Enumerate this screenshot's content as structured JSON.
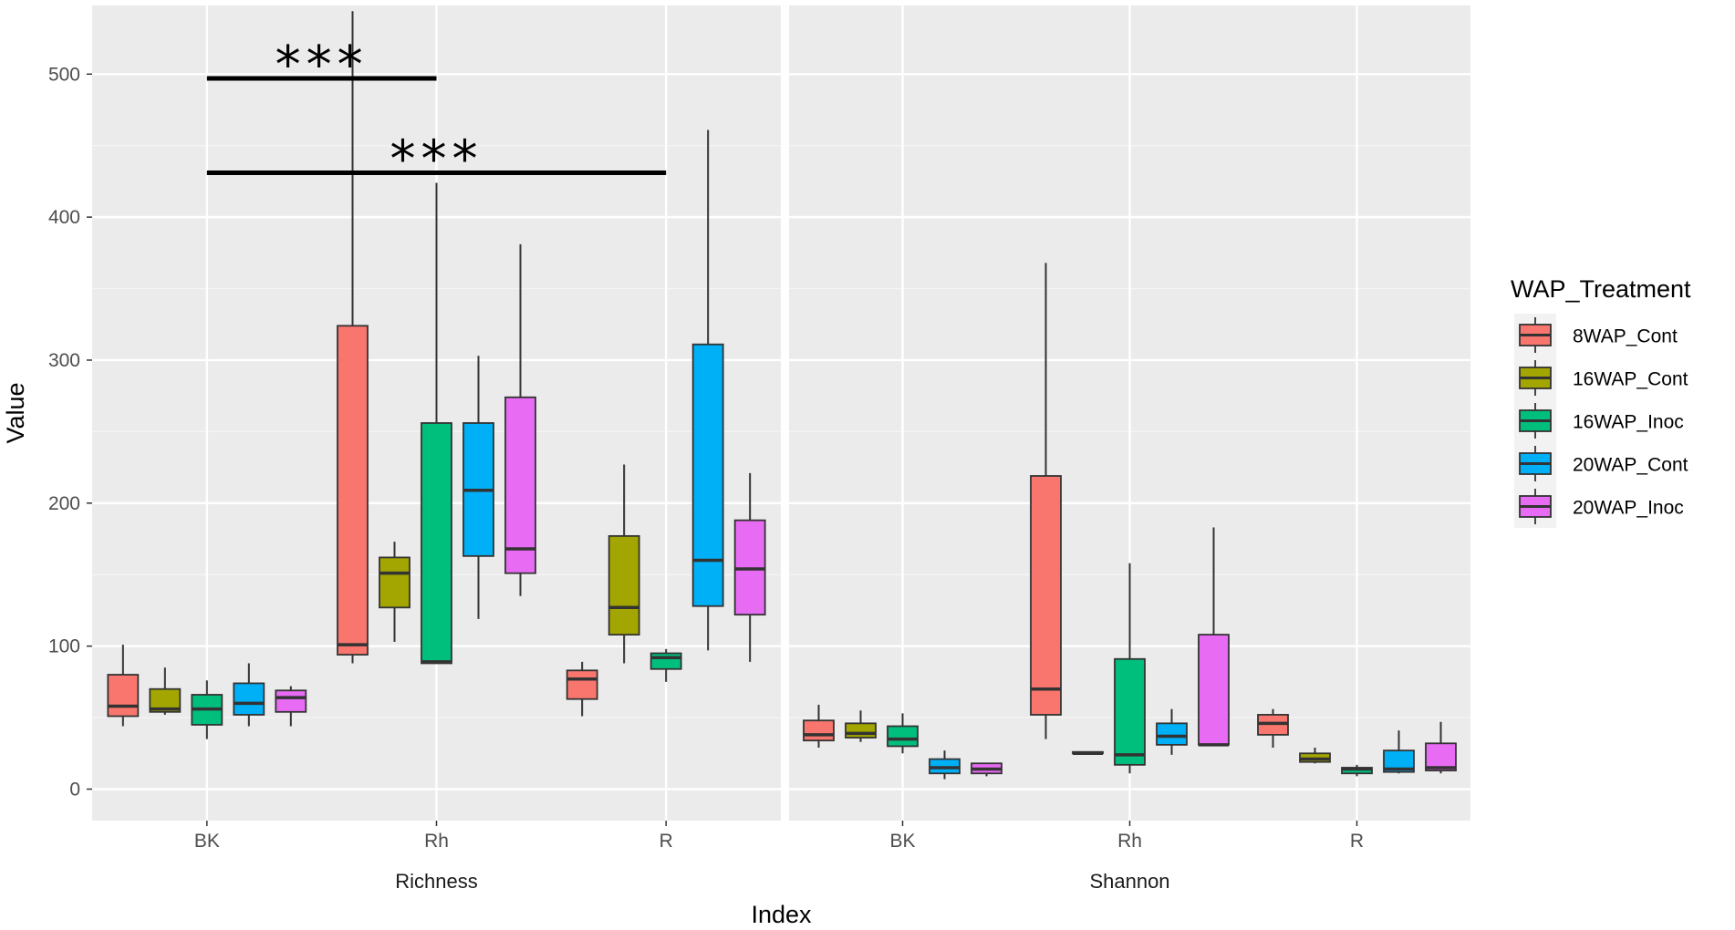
{
  "chart_data": {
    "type": "boxplot",
    "ylabel": "Value",
    "xlabel": "Index",
    "ylim": [
      -22,
      548
    ],
    "yticks": [
      0,
      100,
      200,
      300,
      400,
      500
    ],
    "categories": [
      "BK",
      "Rh",
      "R"
    ],
    "facets": [
      "Richness",
      "Shannon"
    ],
    "legend": {
      "title": "WAP_Treatment",
      "position": "right",
      "entries": [
        "8WAP_Cont",
        "16WAP_Cont",
        "16WAP_Inoc",
        "20WAP_Cont",
        "20WAP_Inoc"
      ]
    },
    "colors": [
      "#f8766d",
      "#a3a500",
      "#00bf7d",
      "#00b0f6",
      "#e76bf3"
    ],
    "series": [
      {
        "name": "8WAP_Cont",
        "Richness": {
          "BK": {
            "min": 44,
            "q1": 51,
            "median": 58,
            "q3": 80,
            "max": 101
          },
          "Rh": {
            "min": 88,
            "q1": 94,
            "median": 101,
            "q3": 324,
            "max": 544
          },
          "R": {
            "min": 51,
            "q1": 63,
            "median": 77,
            "q3": 83,
            "max": 89
          }
        },
        "Shannon": {
          "BK": {
            "min": 29,
            "q1": 34,
            "median": 38,
            "q3": 48,
            "max": 59
          },
          "Rh": {
            "min": 35,
            "q1": 52,
            "median": 70,
            "q3": 219,
            "max": 368
          },
          "R": {
            "min": 29,
            "q1": 38,
            "median": 46,
            "q3": 52,
            "max": 56
          }
        }
      },
      {
        "name": "16WAP_Cont",
        "Richness": {
          "BK": {
            "min": 52,
            "q1": 54,
            "median": 56,
            "q3": 70,
            "max": 85
          },
          "Rh": {
            "min": 103,
            "q1": 127,
            "median": 151,
            "q3": 162,
            "max": 173
          },
          "R": {
            "min": 88,
            "q1": 108,
            "median": 127,
            "q3": 177,
            "max": 227
          }
        },
        "Shannon": {
          "BK": {
            "min": 33,
            "q1": 36,
            "median": 39,
            "q3": 46,
            "max": 55
          },
          "Rh": {
            "min": 24,
            "q1": 25,
            "median": 25,
            "q3": 26,
            "max": 26
          },
          "R": {
            "min": 18,
            "q1": 19,
            "median": 21,
            "q3": 25,
            "max": 29
          }
        }
      },
      {
        "name": "16WAP_Inoc",
        "Richness": {
          "BK": {
            "min": 35,
            "q1": 45,
            "median": 56,
            "q3": 66,
            "max": 76
          },
          "Rh": {
            "min": 88,
            "q1": 88,
            "median": 89,
            "q3": 256,
            "max": 424
          },
          "R": {
            "min": 75,
            "q1": 84,
            "median": 92,
            "q3": 95,
            "max": 98
          }
        },
        "Shannon": {
          "BK": {
            "min": 25,
            "q1": 30,
            "median": 35,
            "q3": 44,
            "max": 53
          },
          "Rh": {
            "min": 11,
            "q1": 17,
            "median": 24,
            "q3": 91,
            "max": 158
          },
          "R": {
            "min": 9,
            "q1": 11,
            "median": 14,
            "q3": 15,
            "max": 17
          }
        }
      },
      {
        "name": "20WAP_Cont",
        "Richness": {
          "BK": {
            "min": 44,
            "q1": 52,
            "median": 60,
            "q3": 74,
            "max": 88
          },
          "Rh": {
            "min": 119,
            "q1": 163,
            "median": 209,
            "q3": 256,
            "max": 303
          },
          "R": {
            "min": 97,
            "q1": 128,
            "median": 160,
            "q3": 311,
            "max": 461
          }
        },
        "Shannon": {
          "BK": {
            "min": 7,
            "q1": 11,
            "median": 15,
            "q3": 21,
            "max": 27
          },
          "Rh": {
            "min": 24,
            "q1": 31,
            "median": 37,
            "q3": 46,
            "max": 56
          },
          "R": {
            "min": 11,
            "q1": 12,
            "median": 14,
            "q3": 27,
            "max": 41
          }
        }
      },
      {
        "name": "20WAP_Inoc",
        "Richness": {
          "BK": {
            "min": 44,
            "q1": 54,
            "median": 64,
            "q3": 69,
            "max": 72
          },
          "Rh": {
            "min": 135,
            "q1": 151,
            "median": 168,
            "q3": 274,
            "max": 381
          },
          "R": {
            "min": 89,
            "q1": 122,
            "median": 154,
            "q3": 188,
            "max": 221
          }
        },
        "Shannon": {
          "BK": {
            "min": 9,
            "q1": 11,
            "median": 14,
            "q3": 18,
            "max": 18
          },
          "Rh": {
            "min": 30,
            "q1": 31,
            "median": 31,
            "q3": 108,
            "max": 183
          },
          "R": {
            "min": 11,
            "q1": 13,
            "median": 15,
            "q3": 32,
            "max": 47
          }
        }
      }
    ],
    "annotations": [
      {
        "text": "***",
        "facet": "Richness",
        "from": "BK",
        "to": "Rh",
        "y": 497
      },
      {
        "text": "***",
        "facet": "Richness",
        "from": "BK",
        "to": "R",
        "y": 431
      }
    ]
  }
}
